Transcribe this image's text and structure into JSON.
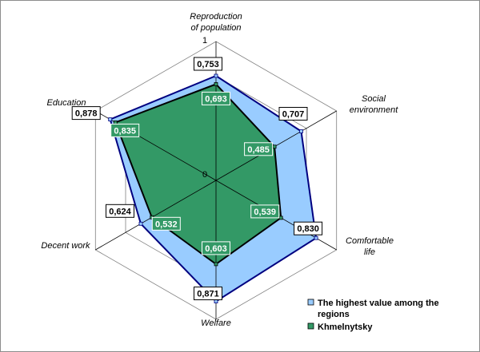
{
  "chart_data": {
    "type": "radar",
    "title": "",
    "axes": [
      {
        "lines": [
          "Reproduction",
          "of population"
        ]
      },
      {
        "lines": [
          "Social",
          "environment"
        ]
      },
      {
        "lines": [
          "Comfortable",
          "life"
        ]
      },
      {
        "lines": [
          "Welfare"
        ]
      },
      {
        "lines": [
          "Decent work"
        ]
      },
      {
        "lines": [
          "Education"
        ]
      }
    ],
    "rlim": [
      0,
      1
    ],
    "ticks": {
      "min_label": "0",
      "max_label": "1"
    },
    "grid": true,
    "series": [
      {
        "name": "The highest value among the regions",
        "legend_lines": [
          "The highest value among the",
          "regions"
        ],
        "values": [
          0.753,
          0.707,
          0.83,
          0.871,
          0.624,
          0.878
        ],
        "labels": [
          "0,753",
          "0,707",
          "0,830",
          "0,871",
          "0,624",
          "0,878"
        ],
        "color": "#99ccff",
        "stroke": "#000080"
      },
      {
        "name": "Khmelnytsky",
        "legend_lines": [
          "Khmelnytsky"
        ],
        "values": [
          0.693,
          0.485,
          0.539,
          0.603,
          0.532,
          0.835
        ],
        "labels": [
          "0,693",
          "0,485",
          "0,539",
          "0,603",
          "0,532",
          "0,835"
        ],
        "color": "#339966",
        "stroke": "#000000"
      }
    ],
    "legend_position": "bottom-right"
  }
}
